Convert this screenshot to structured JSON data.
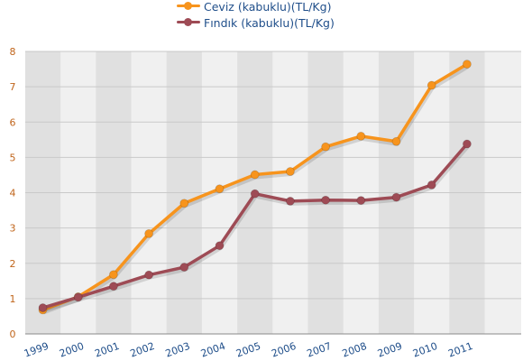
{
  "chart_data": {
    "type": "line",
    "title": "",
    "xlabel": "",
    "ylabel": "",
    "categories": [
      "1999",
      "2000",
      "2001",
      "2002",
      "2003",
      "2004",
      "2005",
      "2006",
      "2007",
      "2008",
      "2009",
      "2010",
      "2011"
    ],
    "ylim": [
      0,
      8
    ],
    "yticks": [
      "0",
      "1",
      "2",
      "3",
      "4",
      "5",
      "6",
      "7",
      "8"
    ],
    "grid": true,
    "legend_position": "top",
    "series": [
      {
        "name": "Ceviz (kabuklu)(TL/Kg)",
        "color": "#f7941d",
        "values": [
          0.68,
          1.05,
          1.68,
          2.84,
          3.7,
          4.11,
          4.51,
          4.6,
          5.3,
          5.6,
          5.45,
          7.04,
          7.64
        ]
      },
      {
        "name": "Fındık (kabuklu)(TL/Kg)",
        "color": "#9e4b55",
        "values": [
          0.74,
          1.04,
          1.35,
          1.67,
          1.89,
          2.5,
          3.97,
          3.76,
          3.79,
          3.78,
          3.87,
          4.22,
          5.38
        ]
      }
    ]
  }
}
